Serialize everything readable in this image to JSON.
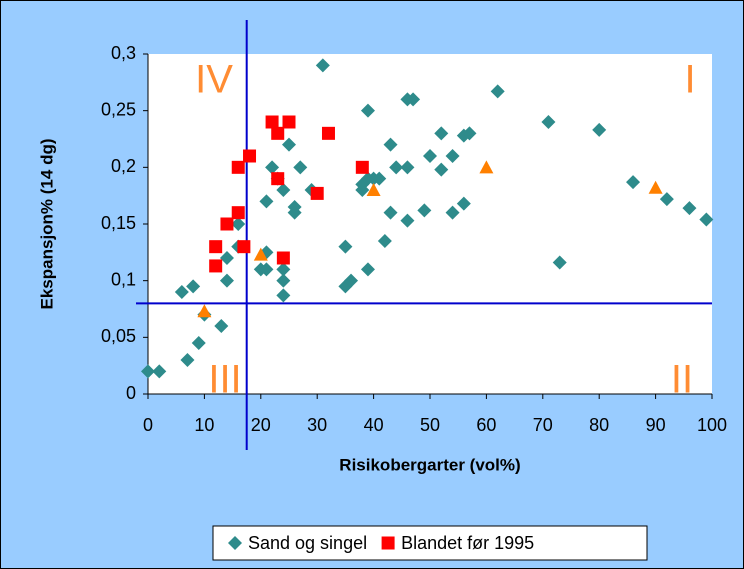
{
  "chart_data": {
    "type": "scatter",
    "x_label": "Risikobergarter (vol%)",
    "y_label": "Ekspansjon% (14 dg)",
    "xlim": [
      0,
      100
    ],
    "xticks": [
      0,
      10,
      20,
      30,
      40,
      50,
      60,
      70,
      80,
      90,
      100
    ],
    "ylim": [
      0,
      0.3
    ],
    "yticks": [
      0,
      {
        "value": 0.05,
        "label": "0,05"
      },
      {
        "value": 0.1,
        "label": "0,1"
      },
      {
        "value": 0.15,
        "label": "0,15"
      },
      {
        "value": 0.2,
        "label": "0,2"
      },
      {
        "value": 0.25,
        "label": "0,25"
      },
      {
        "value": 0.3,
        "label": "0,3"
      }
    ],
    "vline": 17.5,
    "hline": 0.08,
    "line_color": "#0000cc",
    "annotations": [
      "IV",
      "I",
      "III",
      "II"
    ],
    "legend": "bottom",
    "series": [
      {
        "name": "Sand og singel",
        "color": "#2e8b8b",
        "marker": "diamond",
        "x": [
          0,
          2,
          7,
          9,
          6,
          8,
          10,
          13,
          14,
          14,
          16,
          16,
          20,
          21,
          21,
          21,
          22,
          23,
          24,
          24,
          24,
          24,
          25,
          26,
          26,
          27,
          29,
          31,
          35,
          35,
          36,
          38,
          38,
          39,
          39,
          39,
          40,
          41,
          42,
          43,
          43,
          44,
          46,
          46,
          46,
          47,
          49,
          50,
          52,
          52,
          54,
          54,
          56,
          56,
          57,
          62,
          71,
          73,
          80,
          86,
          92,
          96,
          99
        ],
        "values": [
          0.02,
          0.02,
          0.03,
          0.045,
          0.09,
          0.095,
          0.07,
          0.06,
          0.1,
          0.12,
          0.13,
          0.15,
          0.11,
          0.11,
          0.125,
          0.17,
          0.2,
          0.19,
          0.18,
          0.11,
          0.1,
          0.087,
          0.22,
          0.16,
          0.165,
          0.2,
          0.18,
          0.29,
          0.13,
          0.095,
          0.1,
          0.18,
          0.185,
          0.25,
          0.19,
          0.11,
          0.19,
          0.19,
          0.135,
          0.16,
          0.22,
          0.2,
          0.26,
          0.2,
          0.153,
          0.26,
          0.162,
          0.21,
          0.23,
          0.198,
          0.21,
          0.16,
          0.168,
          0.228,
          0.23,
          0.267,
          0.24,
          0.116,
          0.233,
          0.187,
          0.172,
          0.164,
          0.154
        ]
      },
      {
        "name": "Blandet før 1995",
        "color": "#ff0000",
        "marker": "square",
        "x": [
          12,
          12,
          14,
          16,
          16,
          17,
          18,
          22,
          23,
          23,
          24,
          25,
          30,
          32,
          38
        ],
        "values": [
          0.113,
          0.13,
          0.15,
          0.16,
          0.2,
          0.13,
          0.21,
          0.24,
          0.23,
          0.19,
          0.12,
          0.24,
          0.177,
          0.23,
          0.2
        ]
      },
      {
        "color": "#ff8000",
        "marker": "triangle",
        "x": [
          10,
          20,
          40,
          60,
          90
        ],
        "values": [
          0.073,
          0.123,
          0.18,
          0.2,
          0.182
        ]
      }
    ]
  }
}
